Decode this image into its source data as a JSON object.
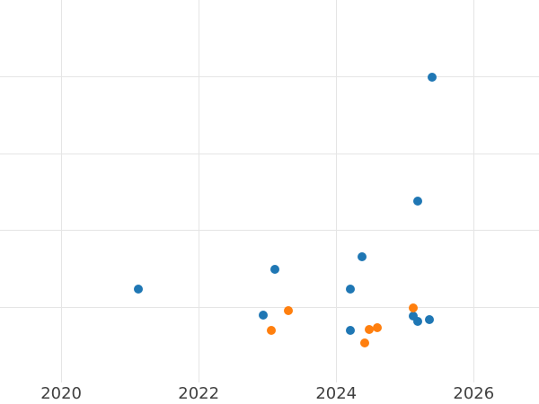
{
  "chart_data": {
    "type": "scatter",
    "title": "",
    "xlabel": "",
    "ylabel": "",
    "grid": true,
    "legend_shown": false,
    "x_axis": {
      "tick_labels": [
        "2020",
        "2022",
        "2024",
        "2026"
      ],
      "tick_values": [
        2020,
        2022,
        2024,
        2026
      ],
      "range": [
        2019.11,
        2026.95
      ]
    },
    "y_axis": {
      "visible": false,
      "tick_labels": [],
      "gridline_values": [
        1,
        2,
        3,
        4
      ],
      "range": [
        0.02,
        5.0
      ]
    },
    "series": [
      {
        "name": "blue-series",
        "color": "#1f77b4",
        "points": [
          {
            "x": 2021.12,
            "y": 1.24
          },
          {
            "x": 2022.94,
            "y": 0.9
          },
          {
            "x": 2023.11,
            "y": 1.49
          },
          {
            "x": 2024.2,
            "y": 0.7
          },
          {
            "x": 2024.21,
            "y": 1.23
          },
          {
            "x": 2024.37,
            "y": 1.66
          },
          {
            "x": 2025.12,
            "y": 0.89
          },
          {
            "x": 2025.18,
            "y": 0.82
          },
          {
            "x": 2025.18,
            "y": 2.38
          },
          {
            "x": 2025.35,
            "y": 0.84
          },
          {
            "x": 2025.39,
            "y": 4.0
          }
        ]
      },
      {
        "name": "orange-series",
        "color": "#ff7f0e",
        "points": [
          {
            "x": 2023.05,
            "y": 0.7
          },
          {
            "x": 2023.31,
            "y": 0.96
          },
          {
            "x": 2024.42,
            "y": 0.54
          },
          {
            "x": 2024.48,
            "y": 0.71
          },
          {
            "x": 2024.6,
            "y": 0.73
          },
          {
            "x": 2025.12,
            "y": 0.99
          }
        ]
      }
    ],
    "style": {
      "grid_color": "#e5e5e5",
      "tick_label_color": "#404040",
      "background_color": "#ffffff",
      "marker_diameter_px": 10
    }
  }
}
